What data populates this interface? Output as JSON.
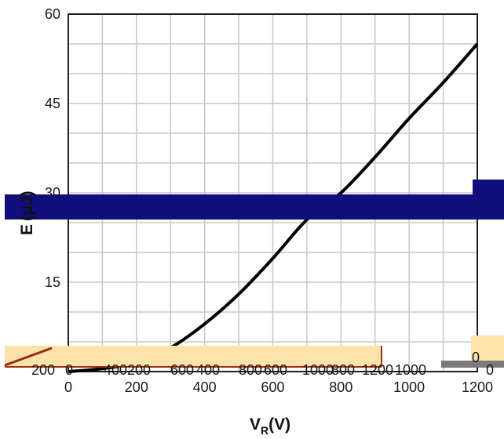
{
  "chart_data": {
    "type": "line",
    "title": "",
    "xlabel": {
      "main": "V",
      "sub": "R",
      "unit": "(V)"
    },
    "ylabel": {
      "main": "E",
      "unit": "(μJ)"
    },
    "xlim": [
      0,
      1200
    ],
    "ylim": [
      0,
      60
    ],
    "xticks": [
      0,
      200,
      400,
      600,
      800,
      1000,
      1200
    ],
    "xtick_labels": [
      "0",
      "200",
      "400",
      "600",
      "800",
      "1000",
      "1200"
    ],
    "yticks": [
      15,
      30,
      45,
      60
    ],
    "ytick_labels": [
      "15",
      "30",
      "45",
      "60"
    ],
    "grid": true,
    "series": [
      {
        "x": [
          0,
          100,
          200,
          300,
          400,
          500,
          600,
          700,
          800,
          900,
          1000,
          1100,
          1200
        ],
        "y": [
          0,
          0.5,
          1.5,
          4,
          8,
          13,
          19,
          25.5,
          30,
          36,
          42.5,
          48.5,
          55
        ]
      }
    ],
    "overlays": {
      "lower_band_labels": [
        "200",
        "0",
        "400",
        "200",
        "600",
        "400",
        "800",
        "600",
        "1000",
        "800",
        "1200",
        "1000"
      ],
      "small_labels": [
        "0",
        "0"
      ]
    }
  }
}
